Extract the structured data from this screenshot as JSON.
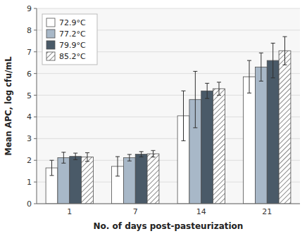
{
  "chart_data": {
    "type": "bar",
    "xlabel": "No. of days post-pasteurization",
    "ylabel": "Mean APC, log cfu/mL",
    "categories": [
      "1",
      "7",
      "14",
      "21"
    ],
    "series": [
      {
        "name": "72.9°C",
        "color": "#ffffff",
        "values": [
          1.65,
          1.72,
          4.05,
          5.85
        ],
        "errors": [
          0.35,
          0.45,
          1.15,
          0.75
        ]
      },
      {
        "name": "77.2°C",
        "color": "#a8b8c8",
        "values": [
          2.12,
          2.12,
          4.8,
          6.3
        ],
        "errors": [
          0.25,
          0.15,
          1.3,
          0.65
        ]
      },
      {
        "name": "79.9°C",
        "color": "#4a5a68",
        "values": [
          2.18,
          2.28,
          5.2,
          6.6
        ],
        "errors": [
          0.15,
          0.12,
          0.35,
          0.8
        ]
      },
      {
        "name": "85.2°C",
        "color": "#ffffff",
        "values": [
          2.15,
          2.3,
          5.3,
          7.05
        ],
        "errors": [
          0.2,
          0.15,
          0.3,
          0.65
        ]
      }
    ],
    "ylim": [
      0,
      9
    ],
    "yticks": [
      0,
      1,
      2,
      3,
      4,
      5,
      6,
      7,
      8,
      9
    ],
    "grid": true,
    "legend": "upper left"
  }
}
